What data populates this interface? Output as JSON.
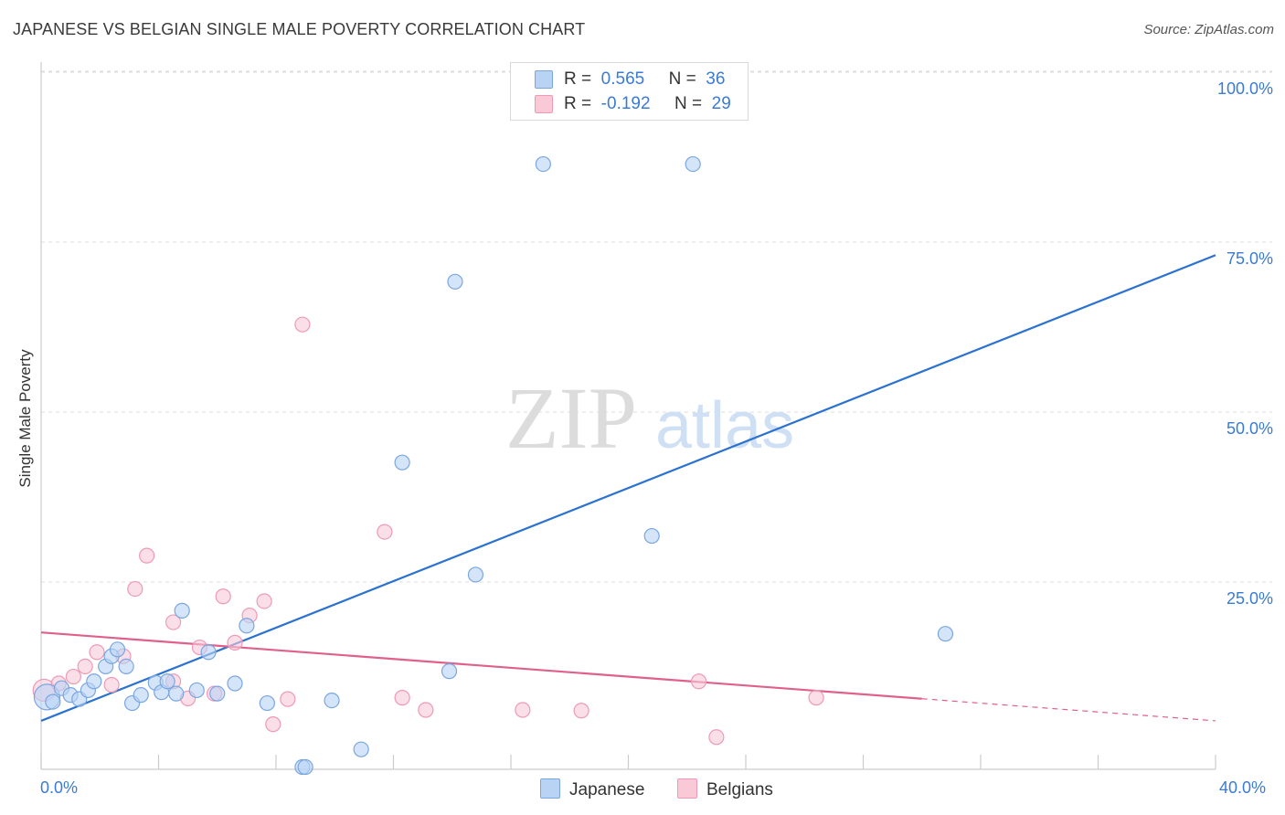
{
  "title": "JAPANESE VS BELGIAN SINGLE MALE POVERTY CORRELATION CHART",
  "source": "Source: ZipAtlas.com",
  "watermark": {
    "zip": "ZIP",
    "atlas": "atlas"
  },
  "colors": {
    "japanese_fill": "#b9d3f5",
    "japanese_stroke": "#7aa6e0",
    "japanese_line": "#2b72d0",
    "belgian_fill": "#f9c9d8",
    "belgian_stroke": "#ee9ab5",
    "belgian_line": "#e0608c",
    "value_text": "#3a7bd5",
    "grid": "#dddddd"
  },
  "legend": {
    "rows": [
      {
        "r_label": "R =",
        "r_value": "0.565",
        "n_label": "N =",
        "n_value": "36"
      },
      {
        "r_label": "R =",
        "r_value": "-0.192",
        "n_label": "N =",
        "n_value": "29"
      }
    ]
  },
  "bottom_legend": {
    "japanese": "Japanese",
    "belgians": "Belgians"
  },
  "x_axis": {
    "min_label": "0.0%",
    "max_label": "40.0%"
  },
  "chart_data": {
    "type": "scatter",
    "title": "JAPANESE VS BELGIAN SINGLE MALE POVERTY CORRELATION CHART",
    "xlabel": "",
    "ylabel": "Single Male Poverty",
    "xlim": [
      0,
      40
    ],
    "ylim": [
      0,
      100
    ],
    "y_ticks": [
      {
        "value": 25,
        "label": "25.0%"
      },
      {
        "value": 50,
        "label": "50.0%"
      },
      {
        "value": 75,
        "label": "75.0%"
      },
      {
        "value": 100,
        "label": "100.0%"
      }
    ],
    "series": [
      {
        "name": "Japanese",
        "r": 0.565,
        "n": 36,
        "trend": {
          "x0": 0,
          "y0": 7.0,
          "x1": 40,
          "y1": 75.5,
          "solid_to": 40
        },
        "points": [
          {
            "x": 0.2,
            "y": 10.5,
            "s": 14
          },
          {
            "x": 0.4,
            "y": 9.8
          },
          {
            "x": 0.7,
            "y": 11.8
          },
          {
            "x": 1.0,
            "y": 10.8
          },
          {
            "x": 1.3,
            "y": 10.2
          },
          {
            "x": 1.6,
            "y": 11.5
          },
          {
            "x": 1.8,
            "y": 12.8
          },
          {
            "x": 2.2,
            "y": 15.0
          },
          {
            "x": 2.4,
            "y": 16.5
          },
          {
            "x": 2.6,
            "y": 17.5
          },
          {
            "x": 2.9,
            "y": 15.0
          },
          {
            "x": 3.1,
            "y": 9.6
          },
          {
            "x": 3.4,
            "y": 10.8
          },
          {
            "x": 3.9,
            "y": 12.6
          },
          {
            "x": 4.1,
            "y": 11.2
          },
          {
            "x": 4.3,
            "y": 12.8
          },
          {
            "x": 4.6,
            "y": 11.0
          },
          {
            "x": 4.8,
            "y": 23.2
          },
          {
            "x": 5.3,
            "y": 11.5
          },
          {
            "x": 5.7,
            "y": 17.1
          },
          {
            "x": 6.0,
            "y": 11.0
          },
          {
            "x": 6.6,
            "y": 12.5
          },
          {
            "x": 7.0,
            "y": 21.0
          },
          {
            "x": 7.7,
            "y": 9.6
          },
          {
            "x": 8.9,
            "y": 0.2
          },
          {
            "x": 9.0,
            "y": 0.2
          },
          {
            "x": 9.9,
            "y": 10.0
          },
          {
            "x": 10.9,
            "y": 2.8
          },
          {
            "x": 12.3,
            "y": 45.0
          },
          {
            "x": 13.9,
            "y": 14.3
          },
          {
            "x": 14.1,
            "y": 71.6
          },
          {
            "x": 14.8,
            "y": 28.5
          },
          {
            "x": 17.1,
            "y": 88.9
          },
          {
            "x": 20.8,
            "y": 34.2
          },
          {
            "x": 22.2,
            "y": 88.9
          },
          {
            "x": 30.8,
            "y": 19.8
          }
        ]
      },
      {
        "name": "Belgians",
        "r": -0.192,
        "n": 29,
        "trend": {
          "x0": 0,
          "y0": 20.0,
          "x1": 40,
          "y1": 7.0,
          "solid_to": 30.0
        },
        "points": [
          {
            "x": 0.1,
            "y": 11.5,
            "s": 12
          },
          {
            "x": 0.6,
            "y": 12.5
          },
          {
            "x": 1.1,
            "y": 13.5
          },
          {
            "x": 1.5,
            "y": 15.0
          },
          {
            "x": 1.9,
            "y": 17.1
          },
          {
            "x": 2.4,
            "y": 12.3
          },
          {
            "x": 2.8,
            "y": 16.5
          },
          {
            "x": 3.2,
            "y": 26.4
          },
          {
            "x": 3.6,
            "y": 31.3
          },
          {
            "x": 4.5,
            "y": 12.8
          },
          {
            "x": 4.5,
            "y": 21.5
          },
          {
            "x": 5.0,
            "y": 10.3
          },
          {
            "x": 5.4,
            "y": 17.8
          },
          {
            "x": 5.9,
            "y": 11.0
          },
          {
            "x": 6.2,
            "y": 25.3
          },
          {
            "x": 6.6,
            "y": 18.5
          },
          {
            "x": 7.1,
            "y": 22.5
          },
          {
            "x": 7.6,
            "y": 24.6
          },
          {
            "x": 7.9,
            "y": 6.5
          },
          {
            "x": 8.4,
            "y": 10.2
          },
          {
            "x": 8.9,
            "y": 65.3
          },
          {
            "x": 11.7,
            "y": 34.8
          },
          {
            "x": 12.3,
            "y": 10.4
          },
          {
            "x": 13.1,
            "y": 8.6
          },
          {
            "x": 16.4,
            "y": 8.6
          },
          {
            "x": 18.4,
            "y": 8.5
          },
          {
            "x": 22.4,
            "y": 12.8
          },
          {
            "x": 23.0,
            "y": 4.6
          },
          {
            "x": 26.4,
            "y": 10.4
          }
        ]
      }
    ]
  }
}
